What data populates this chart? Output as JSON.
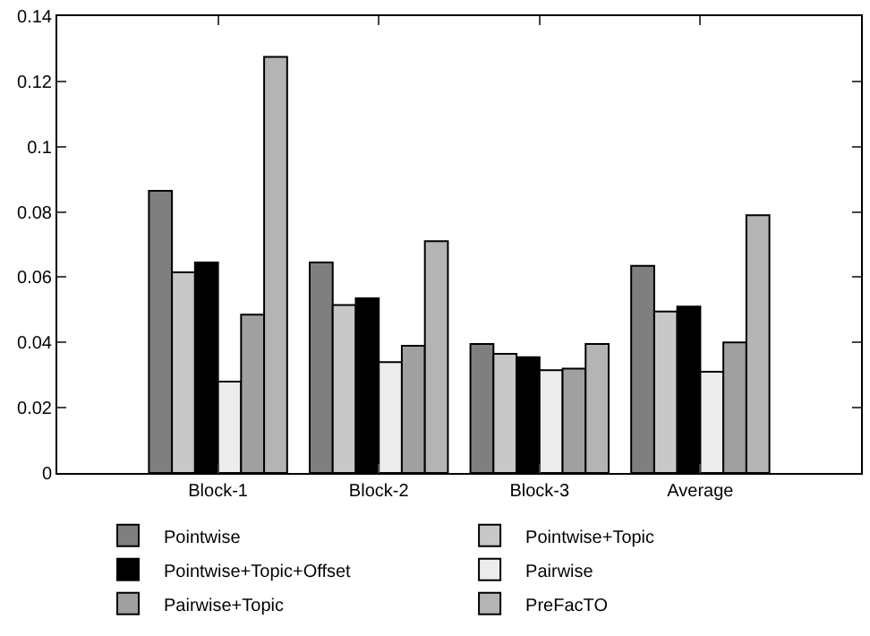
{
  "chart_data": {
    "type": "bar",
    "categories": [
      "Block-1",
      "Block-2",
      "Block-3",
      "Average"
    ],
    "series": [
      {
        "name": "Pointwise",
        "color": "#7f7f7f",
        "values": [
          0.0865,
          0.0645,
          0.0395,
          0.0635
        ]
      },
      {
        "name": "Pointwise+Topic",
        "color": "#c8c8c8",
        "values": [
          0.0615,
          0.0515,
          0.0365,
          0.0495
        ]
      },
      {
        "name": "Pointwise+Topic+Offset",
        "color": "#000000",
        "values": [
          0.0645,
          0.0535,
          0.0355,
          0.051
        ]
      },
      {
        "name": "Pairwise",
        "color": "#ececec",
        "values": [
          0.028,
          0.034,
          0.0315,
          0.031
        ]
      },
      {
        "name": "Pairwise+Topic",
        "color": "#a0a0a0",
        "values": [
          0.0485,
          0.039,
          0.032,
          0.04
        ]
      },
      {
        "name": "PreFacTO",
        "color": "#b4b4b4",
        "values": [
          0.1275,
          0.071,
          0.0395,
          0.079
        ]
      }
    ],
    "ylim": [
      0,
      0.14
    ],
    "yticks": [
      0,
      0.02,
      0.04,
      0.06,
      0.08,
      0.1,
      0.12,
      0.14
    ],
    "legend": "bottom"
  }
}
